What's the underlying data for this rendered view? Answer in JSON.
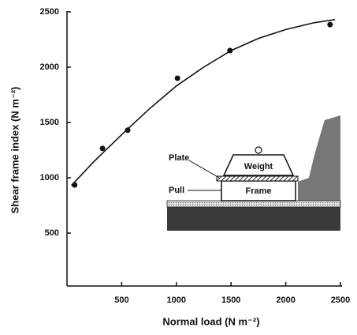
{
  "chart_data": {
    "type": "scatter",
    "x_label": "Normal load  (N m⁻²)",
    "y_label": "Shear frame index  (N m⁻²)",
    "series": [
      {
        "kind": "points",
        "color": "#111111",
        "x": [
          70,
          325,
          555,
          1010,
          1490,
          2405
        ],
        "values": [
          935,
          1265,
          1430,
          1900,
          2150,
          2385
        ]
      },
      {
        "kind": "curve",
        "color": "#111111",
        "x": [
          40,
          250,
          500,
          750,
          1000,
          1250,
          1500,
          1750,
          2000,
          2250,
          2450
        ],
        "values": [
          930,
          1150,
          1390,
          1620,
          1830,
          2000,
          2150,
          2260,
          2340,
          2400,
          2430
        ]
      }
    ],
    "xlim": [
      0,
      2500
    ],
    "ylim": [
      0,
      2500
    ],
    "xticks": [
      500,
      1000,
      1500,
      2000,
      2500
    ],
    "yticks": [
      500,
      1000,
      1500,
      2000,
      2500
    ],
    "grid": false
  },
  "inset": {
    "labels": [
      "Plate",
      "Weight",
      "Pull",
      "Frame"
    ]
  }
}
